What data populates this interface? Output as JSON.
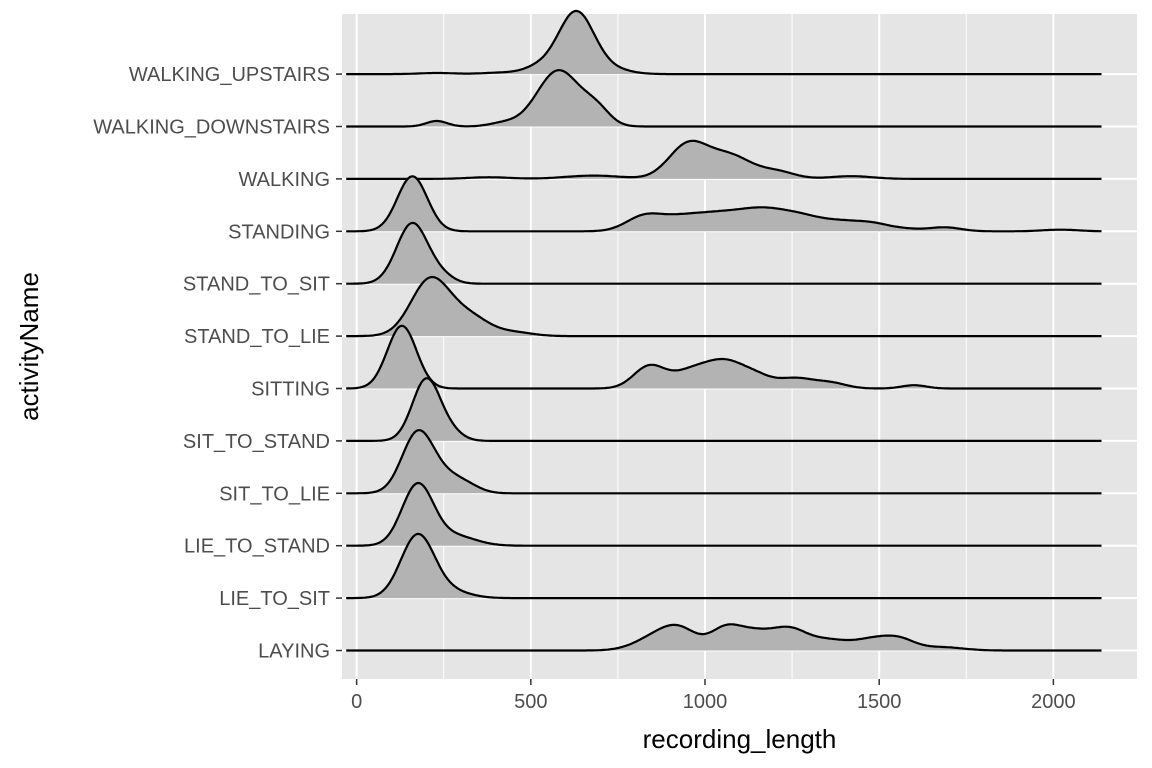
{
  "chart_data": {
    "type": "ridgeline",
    "xlabel": "recording_length",
    "ylabel": "activityName",
    "xlim": [
      -42,
      2240
    ],
    "x_ticks": [
      0,
      500,
      1000,
      1500,
      2000
    ],
    "x_tick_labels": [
      "0",
      "500",
      "1000",
      "1500",
      "2000"
    ],
    "x_minor_ticks": [
      250,
      750,
      1250,
      1750
    ],
    "density_range": [
      -30,
      2140
    ],
    "categories": [
      "LAYING",
      "LIE_TO_SIT",
      "LIE_TO_STAND",
      "SIT_TO_LIE",
      "SIT_TO_STAND",
      "SITTING",
      "STAND_TO_LIE",
      "STAND_TO_SIT",
      "STANDING",
      "WALKING",
      "WALKING_DOWNSTAIRS",
      "WALKING_UPSTAIRS"
    ],
    "grid": true,
    "legend": "none",
    "colors": {
      "panel": "#e5e5e5",
      "grid": "#ffffff",
      "fill": "#b3b3b3",
      "line": "#000000",
      "text": "#4d4d4d"
    },
    "series": [
      {
        "name": "LAYING",
        "peaks": [
          [
            860,
            0.24,
            60
          ],
          [
            930,
            0.32,
            50
          ],
          [
            1060,
            0.4,
            45
          ],
          [
            1140,
            0.25,
            45
          ],
          [
            1240,
            0.4,
            55
          ],
          [
            1360,
            0.16,
            50
          ],
          [
            1480,
            0.2,
            55
          ],
          [
            1560,
            0.17,
            45
          ],
          [
            1680,
            0.06,
            60
          ]
        ]
      },
      {
        "name": "LIE_TO_SIT",
        "peaks": [
          [
            175,
            1.14,
            48
          ],
          [
            270,
            0.12,
            55
          ]
        ]
      },
      {
        "name": "LIE_TO_STAND",
        "peaks": [
          [
            175,
            1.1,
            45
          ],
          [
            280,
            0.18,
            60
          ]
        ]
      },
      {
        "name": "SIT_TO_LIE",
        "peaks": [
          [
            175,
            1.08,
            45
          ],
          [
            260,
            0.27,
            50
          ],
          [
            320,
            0.08,
            40
          ]
        ]
      },
      {
        "name": "SIT_TO_STAND",
        "peaks": [
          [
            200,
            1.12,
            40
          ],
          [
            270,
            0.14,
            35
          ]
        ]
      },
      {
        "name": "SITTING",
        "peaks": [
          [
            130,
            1.14,
            42
          ],
          [
            840,
            0.4,
            45
          ],
          [
            960,
            0.3,
            55
          ],
          [
            1060,
            0.45,
            55
          ],
          [
            1150,
            0.18,
            45
          ],
          [
            1260,
            0.18,
            50
          ],
          [
            1360,
            0.1,
            45
          ],
          [
            1600,
            0.06,
            35
          ]
        ]
      },
      {
        "name": "STAND_TO_LIE",
        "peaks": [
          [
            210,
            1.0,
            55
          ],
          [
            320,
            0.36,
            60
          ],
          [
            460,
            0.06,
            50
          ]
        ]
      },
      {
        "name": "STAND_TO_SIT",
        "peaks": [
          [
            160,
            1.1,
            45
          ],
          [
            245,
            0.12,
            35
          ]
        ]
      },
      {
        "name": "STANDING",
        "peaks": [
          [
            160,
            1.0,
            43
          ],
          [
            820,
            0.22,
            50
          ],
          [
            920,
            0.22,
            70
          ],
          [
            1050,
            0.28,
            75
          ],
          [
            1170,
            0.3,
            65
          ],
          [
            1280,
            0.24,
            65
          ],
          [
            1400,
            0.14,
            55
          ],
          [
            1480,
            0.1,
            45
          ],
          [
            1560,
            0.05,
            55
          ],
          [
            1690,
            0.07,
            45
          ],
          [
            2020,
            0.03,
            50
          ]
        ]
      },
      {
        "name": "WALKING",
        "peaks": [
          [
            950,
            0.6,
            55
          ],
          [
            1070,
            0.42,
            65
          ],
          [
            1210,
            0.12,
            50
          ],
          [
            680,
            0.06,
            80
          ],
          [
            1420,
            0.05,
            60
          ],
          [
            380,
            0.03,
            60
          ]
        ]
      },
      {
        "name": "WALKING_DOWNSTAIRS",
        "peaks": [
          [
            580,
            1.02,
            62
          ],
          [
            690,
            0.26,
            38
          ],
          [
            230,
            0.1,
            30
          ],
          [
            420,
            0.06,
            40
          ]
        ]
      },
      {
        "name": "WALKING_UPSTAIRS",
        "peaks": [
          [
            630,
            1.14,
            52
          ],
          [
            520,
            0.1,
            40
          ],
          [
            740,
            0.07,
            50
          ],
          [
            430,
            0.03,
            60
          ],
          [
            230,
            0.02,
            50
          ]
        ]
      }
    ]
  }
}
